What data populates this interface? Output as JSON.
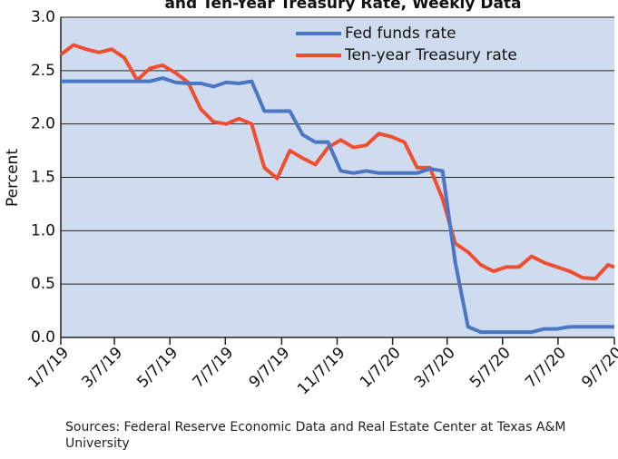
{
  "chart_data": {
    "type": "line",
    "title": "and Ten-Year Treasury Rate, Weekly Data",
    "y_label": "Percent",
    "note": "Sources: Federal Reserve Economic Data and Real Estate Center at Texas A&M University",
    "x": [
      "1/7/19",
      "1/21/19",
      "2/4/19",
      "2/18/19",
      "3/4/19",
      "3/18/19",
      "4/1/19",
      "4/15/19",
      "4/29/19",
      "5/13/19",
      "5/27/19",
      "6/10/19",
      "6/24/19",
      "7/8/19",
      "7/22/19",
      "8/5/19",
      "8/19/19",
      "9/2/19",
      "9/16/19",
      "9/30/19",
      "10/14/19",
      "10/28/19",
      "11/11/19",
      "11/25/19",
      "12/9/19",
      "12/23/19",
      "1/6/20",
      "1/20/20",
      "2/3/20",
      "2/17/20",
      "3/2/20",
      "3/16/20",
      "3/30/20",
      "4/13/20",
      "4/27/20",
      "5/11/20",
      "5/25/20",
      "6/8/20",
      "6/22/20",
      "7/6/20",
      "7/20/20",
      "8/3/20",
      "8/17/20",
      "8/31/20",
      "9/7/20"
    ],
    "series": [
      {
        "name": "Fed funds rate",
        "color": "#4a76c4",
        "values": [
          2.4,
          2.4,
          2.4,
          2.4,
          2.4,
          2.4,
          2.4,
          2.4,
          2.43,
          2.39,
          2.38,
          2.38,
          2.35,
          2.39,
          2.38,
          2.4,
          2.12,
          2.12,
          2.12,
          1.9,
          1.83,
          1.83,
          1.56,
          1.54,
          1.56,
          1.54,
          1.54,
          1.54,
          1.54,
          1.58,
          1.56,
          0.7,
          0.1,
          0.05,
          0.05,
          0.05,
          0.05,
          0.05,
          0.08,
          0.08,
          0.1,
          0.1,
          0.1,
          0.1,
          0.1
        ]
      },
      {
        "name": "Ten-year Treasury rate",
        "color": "#f04e30",
        "values": [
          2.65,
          2.74,
          2.7,
          2.67,
          2.7,
          2.62,
          2.41,
          2.52,
          2.55,
          2.48,
          2.39,
          2.14,
          2.02,
          2.0,
          2.05,
          2.0,
          1.59,
          1.49,
          1.75,
          1.68,
          1.62,
          1.78,
          1.85,
          1.78,
          1.8,
          1.91,
          1.88,
          1.83,
          1.59,
          1.59,
          1.3,
          0.88,
          0.8,
          0.68,
          0.62,
          0.66,
          0.66,
          0.76,
          0.7,
          0.66,
          0.62,
          0.56,
          0.55,
          0.68,
          0.66
        ]
      }
    ],
    "xlim": [
      "1/7/19",
      "9/7/20"
    ],
    "xticks": [
      "1/7/19",
      "3/7/19",
      "5/7/19",
      "7/7/19",
      "9/7/19",
      "11/7/19",
      "1/7/20",
      "3/7/20",
      "5/7/20",
      "7/7/20",
      "9/7/20"
    ],
    "ylim": [
      0,
      3
    ],
    "yticks": [
      {
        "value": 0,
        "label": "0.0"
      },
      {
        "value": 0.5,
        "label": "0.5"
      },
      {
        "value": 1,
        "label": "1.0"
      },
      {
        "value": 1.5,
        "label": "1.5"
      },
      {
        "value": 2,
        "label": "2.0"
      },
      {
        "value": 2.5,
        "label": "2.5"
      },
      {
        "value": 3,
        "label": "3.0"
      }
    ],
    "grid": true,
    "background": "#cfdcef"
  }
}
